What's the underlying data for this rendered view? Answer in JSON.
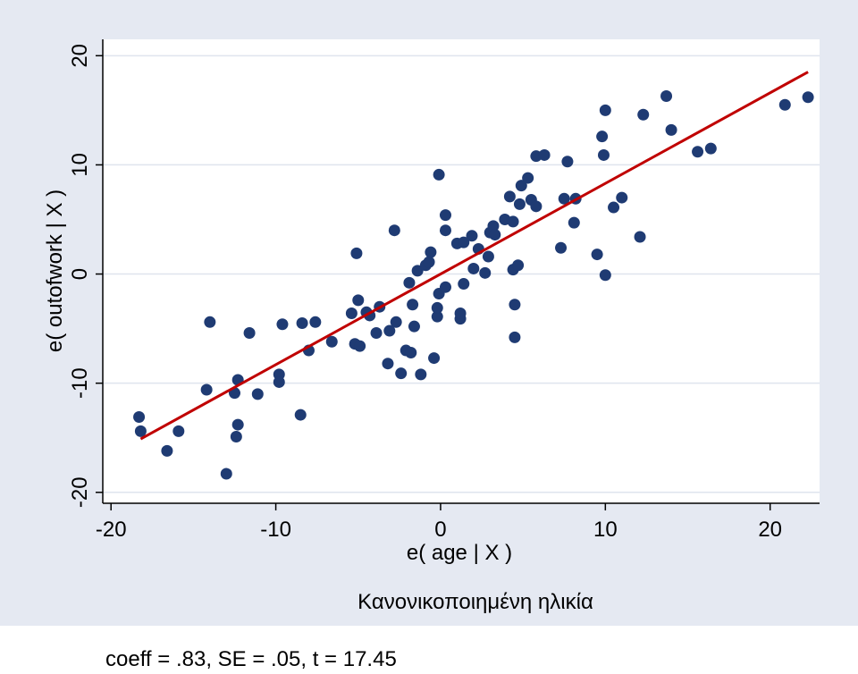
{
  "chart_data": {
    "type": "scatter",
    "xlabel": "e( age | X )",
    "ylabel": "e( outofwork | X )",
    "subtitle": "Κανονικοποιημένη ηλικία",
    "note": "coeff = .83, SE = .05, t = 17.45",
    "xlim": [
      -20.5,
      23
    ],
    "ylim": [
      -21,
      21.5
    ],
    "xticks": [
      -20,
      -10,
      0,
      10,
      20
    ],
    "yticks": [
      -20,
      -10,
      0,
      10,
      20
    ],
    "grid": true,
    "colors": {
      "outer_background": "#e5e9f2",
      "plot_background": "#ffffff",
      "points": "#1f3b73",
      "fit_line": "#c00000",
      "grid": "#dfe4ee",
      "axis": "#000000"
    },
    "fit_line": {
      "slope": 0.83,
      "intercept": 0,
      "x_start": -18.2,
      "x_end": 22.3
    },
    "points": [
      [
        -18.3,
        -13.1
      ],
      [
        -18.2,
        -14.4
      ],
      [
        -16.6,
        -16.2
      ],
      [
        -15.9,
        -14.4
      ],
      [
        -14.2,
        -10.6
      ],
      [
        -14.0,
        -4.4
      ],
      [
        -13.0,
        -18.3
      ],
      [
        -12.5,
        -10.9
      ],
      [
        -12.3,
        -9.7
      ],
      [
        -12.3,
        -13.8
      ],
      [
        -12.4,
        -14.9
      ],
      [
        -11.6,
        -5.4
      ],
      [
        -11.1,
        -11.0
      ],
      [
        -9.8,
        -9.2
      ],
      [
        -9.8,
        -9.9
      ],
      [
        -9.6,
        -4.6
      ],
      [
        -8.5,
        -12.9
      ],
      [
        -8.4,
        -4.5
      ],
      [
        -7.6,
        -4.4
      ],
      [
        -6.6,
        -6.2
      ],
      [
        -5.4,
        -3.6
      ],
      [
        -5.1,
        1.9
      ],
      [
        -5.2,
        -6.4
      ],
      [
        -5.0,
        -2.4
      ],
      [
        -4.9,
        -6.6
      ],
      [
        -4.3,
        -3.8
      ],
      [
        -3.9,
        -5.4
      ],
      [
        -3.7,
        -3.0
      ],
      [
        -3.2,
        -8.2
      ],
      [
        -3.1,
        -5.2
      ],
      [
        -2.8,
        4.0
      ],
      [
        -2.7,
        -4.4
      ],
      [
        -2.4,
        -9.1
      ],
      [
        -2.1,
        -7.0
      ],
      [
        -1.9,
        -0.8
      ],
      [
        -1.8,
        -7.2
      ],
      [
        -1.7,
        -2.8
      ],
      [
        -1.6,
        -4.8
      ],
      [
        -1.4,
        0.3
      ],
      [
        -1.2,
        -9.2
      ],
      [
        -0.9,
        0.8
      ],
      [
        -0.7,
        1.1
      ],
      [
        -0.6,
        2.0
      ],
      [
        -0.4,
        -7.7
      ],
      [
        -0.2,
        -3.9
      ],
      [
        -0.2,
        -3.1
      ],
      [
        -0.1,
        9.1
      ],
      [
        -0.1,
        -1.8
      ],
      [
        0.3,
        5.4
      ],
      [
        0.3,
        4.0
      ],
      [
        0.3,
        -1.2
      ],
      [
        1.0,
        2.8
      ],
      [
        1.2,
        -4.1
      ],
      [
        1.2,
        -3.6
      ],
      [
        1.4,
        -0.9
      ],
      [
        1.4,
        2.9
      ],
      [
        1.9,
        3.5
      ],
      [
        2.3,
        2.3
      ],
      [
        2.7,
        0.1
      ],
      [
        2.9,
        1.6
      ],
      [
        3.0,
        3.8
      ],
      [
        3.2,
        4.4
      ],
      [
        3.3,
        3.6
      ],
      [
        3.9,
        5.0
      ],
      [
        4.2,
        7.1
      ],
      [
        4.4,
        0.4
      ],
      [
        4.5,
        -2.8
      ],
      [
        4.5,
        -5.8
      ],
      [
        4.7,
        0.8
      ],
      [
        4.8,
        6.4
      ],
      [
        4.9,
        8.1
      ],
      [
        5.3,
        8.8
      ],
      [
        5.5,
        6.8
      ],
      [
        5.8,
        6.2
      ],
      [
        5.8,
        10.8
      ],
      [
        6.3,
        10.9
      ],
      [
        7.3,
        2.4
      ],
      [
        7.5,
        6.9
      ],
      [
        7.7,
        10.3
      ],
      [
        8.1,
        4.7
      ],
      [
        8.2,
        6.9
      ],
      [
        9.5,
        1.8
      ],
      [
        9.8,
        12.6
      ],
      [
        9.9,
        10.9
      ],
      [
        10.0,
        15.0
      ],
      [
        10.0,
        -0.1
      ],
      [
        10.5,
        6.1
      ],
      [
        11.0,
        7.0
      ],
      [
        12.1,
        3.4
      ],
      [
        12.3,
        14.6
      ],
      [
        13.7,
        16.3
      ],
      [
        14.0,
        13.2
      ],
      [
        15.6,
        11.2
      ],
      [
        16.4,
        11.5
      ],
      [
        20.9,
        15.5
      ],
      [
        22.3,
        16.2
      ],
      [
        4.4,
        4.8
      ],
      [
        2.0,
        0.5
      ],
      [
        -4.5,
        -3.5
      ],
      [
        -8.0,
        -7.0
      ]
    ]
  }
}
